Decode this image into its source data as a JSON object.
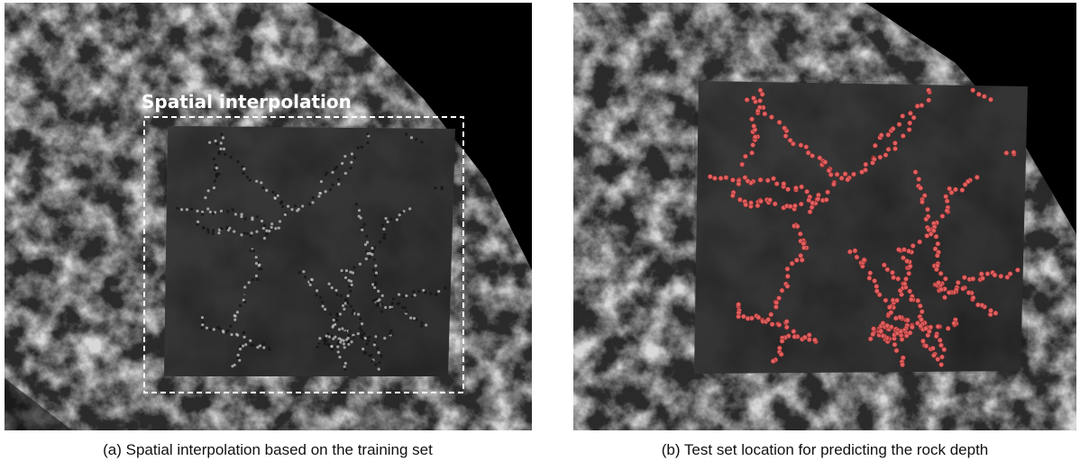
{
  "panels": [
    {
      "annotation": "Spatial interpolation",
      "caption": "(a) Spatial interpolation based on the training set"
    },
    {
      "caption": "(b) Test set location for predicting the rock depth"
    }
  ]
}
